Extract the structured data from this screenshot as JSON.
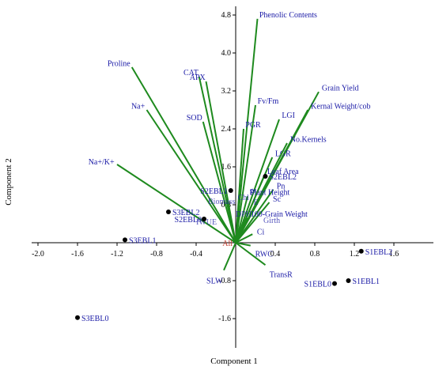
{
  "chart_data": {
    "type": "biplot",
    "xlabel": "Component 1",
    "ylabel": "Component 2",
    "xlim": [
      -2.0,
      2.0
    ],
    "ylim": [
      -1.8,
      5.0
    ],
    "x_ticks": [
      -2.0,
      -1.6,
      -1.2,
      -0.8,
      -0.4,
      0.4,
      0.8,
      1.2,
      1.6
    ],
    "y_ticks": [
      -1.6,
      -0.8,
      0.8,
      1.6,
      2.4,
      3.2,
      4.0,
      4.8
    ],
    "origin_label": "All",
    "vector_color": "#1e8a1e",
    "label_color": "#1a1aa6",
    "vectors": [
      {
        "name": "Phenolic Contents",
        "x": 0.22,
        "y": 4.72
      },
      {
        "name": "Grain Yield",
        "x": 0.84,
        "y": 3.18
      },
      {
        "name": "Kernal Weight/cob",
        "x": 0.73,
        "y": 2.8
      },
      {
        "name": "Proline",
        "x": -1.05,
        "y": 3.7
      },
      {
        "name": "CAT",
        "x": -0.37,
        "y": 3.5
      },
      {
        "name": "APX",
        "x": -0.3,
        "y": 3.4
      },
      {
        "name": "Na+",
        "x": -0.9,
        "y": 2.8
      },
      {
        "name": "SOD",
        "x": -0.33,
        "y": 2.55
      },
      {
        "name": "Fv/Fm",
        "x": 0.2,
        "y": 2.9
      },
      {
        "name": "PGR",
        "x": 0.08,
        "y": 2.4
      },
      {
        "name": "LGI",
        "x": 0.44,
        "y": 2.6
      },
      {
        "name": "LGR",
        "x": 0.37,
        "y": 1.8
      },
      {
        "name": "No.Kernels",
        "x": 0.52,
        "y": 2.1
      },
      {
        "name": "Na+/K+",
        "x": -1.2,
        "y": 1.65
      },
      {
        "name": "Leaf Area",
        "x": 0.29,
        "y": 1.42
      },
      {
        "name": "Pn",
        "x": 0.38,
        "y": 1.12
      },
      {
        "name": "Plant Height",
        "x": 0.12,
        "y": 0.98
      },
      {
        "name": "Sc",
        "x": 0.34,
        "y": 0.85
      },
      {
        "name": "100-Grain Weight",
        "x": 0.12,
        "y": 0.52
      },
      {
        "name": "Ci",
        "x": 0.17,
        "y": 0.18
      },
      {
        "name": "RWC",
        "x": 0.15,
        "y": -0.06
      },
      {
        "name": "TransR",
        "x": 0.3,
        "y": -0.47
      },
      {
        "name": "SLW",
        "x": -0.12,
        "y": -0.58
      }
    ],
    "points": [
      {
        "name": "S1EBL2",
        "x": 1.27,
        "y": -0.18
      },
      {
        "name": "S1EBL1",
        "x": 1.14,
        "y": -0.8
      },
      {
        "name": "S1EBL0",
        "x": 1.0,
        "y": -0.86
      },
      {
        "name": "S2EBL2",
        "x": 0.3,
        "y": 1.4
      },
      {
        "name": "S2EBL1",
        "x": -0.05,
        "y": 1.1
      },
      {
        "name": "S2EBL0",
        "x": -0.32,
        "y": 0.5
      },
      {
        "name": "S3EBL2",
        "x": -0.68,
        "y": 0.65
      },
      {
        "name": "S3EBL1",
        "x": -1.12,
        "y": 0.06
      },
      {
        "name": "S3EBL0",
        "x": -1.6,
        "y": -1.58
      }
    ],
    "faint_labels": [
      {
        "text": "Biomass",
        "x": -0.28,
        "y": 0.82
      },
      {
        "text": "DPH",
        "x": 0.0,
        "y": 0.55
      },
      {
        "text": "Girth",
        "x": 0.28,
        "y": 0.42
      },
      {
        "text": "IWUE",
        "x": -0.4,
        "y": 0.38
      },
      {
        "text": "gs",
        "x": 0.14,
        "y": 1.05
      },
      {
        "text": "E",
        "x": 0.18,
        "y": 0.8
      },
      {
        "text": "Chl",
        "x": 0.02,
        "y": 0.9
      }
    ]
  }
}
